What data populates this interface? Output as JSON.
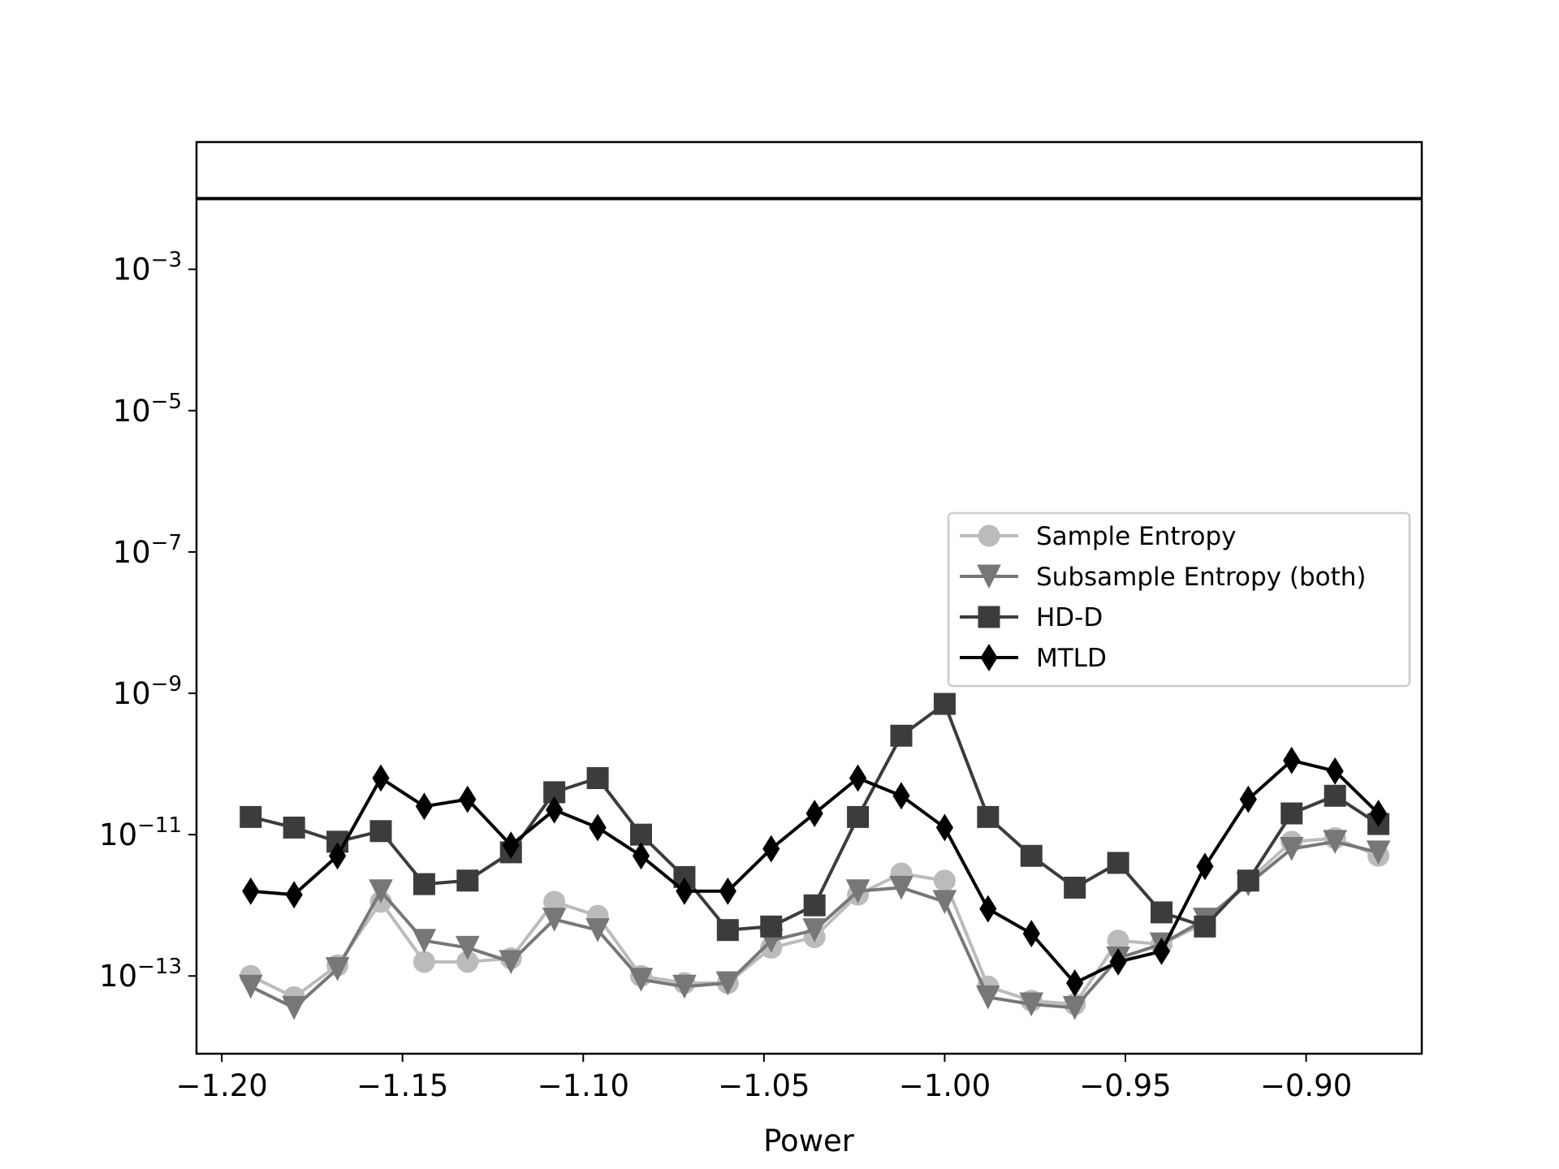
{
  "chart_data": {
    "type": "line",
    "title": "",
    "xlabel": "Power",
    "ylabel": "",
    "yscale": "log",
    "xlim": [
      -1.207,
      -0.868
    ],
    "ylim_log10": [
      -14.1,
      -1.2
    ],
    "x_ticks": [
      {
        "value": -1.2,
        "label": "−1.20"
      },
      {
        "value": -1.15,
        "label": "−1.15"
      },
      {
        "value": -1.1,
        "label": "−1.10"
      },
      {
        "value": -1.05,
        "label": "−1.05"
      },
      {
        "value": -1.0,
        "label": "−1.00"
      },
      {
        "value": -0.95,
        "label": "−0.95"
      },
      {
        "value": -0.9,
        "label": "−0.90"
      }
    ],
    "y_ticks": [
      {
        "exp": -3,
        "base": "10",
        "sup": "−3"
      },
      {
        "exp": -5,
        "base": "10",
        "sup": "−5"
      },
      {
        "exp": -7,
        "base": "10",
        "sup": "−7"
      },
      {
        "exp": -9,
        "base": "10",
        "sup": "−9"
      },
      {
        "exp": -11,
        "base": "10",
        "sup": "−11"
      },
      {
        "exp": -13,
        "base": "10",
        "sup": "−13"
      }
    ],
    "hline": {
      "log10": -2.0,
      "color": "#000000"
    },
    "legend_position": "center-right",
    "x": [
      -1.192,
      -1.18,
      -1.168,
      -1.156,
      -1.144,
      -1.132,
      -1.12,
      -1.108,
      -1.096,
      -1.084,
      -1.072,
      -1.06,
      -1.048,
      -1.036,
      -1.024,
      -1.012,
      -1.0,
      -0.988,
      -0.976,
      -0.964,
      -0.952,
      -0.94,
      -0.928,
      -0.916,
      -0.904,
      -0.892,
      -0.88
    ],
    "series": [
      {
        "name": "Sample Entropy",
        "color": "#bbbbbb",
        "marker": "circle",
        "log10": [
          -13.0,
          -13.3,
          -12.85,
          -11.95,
          -12.8,
          -12.8,
          -12.75,
          -11.95,
          -12.15,
          -13.0,
          -13.1,
          -13.1,
          -12.6,
          -12.45,
          -11.85,
          -11.55,
          -11.65,
          -13.15,
          -13.35,
          -13.4,
          -12.5,
          -12.55,
          -12.25,
          -11.65,
          -11.1,
          -11.05,
          -11.3
        ]
      },
      {
        "name": "Subsample Entropy (both)",
        "color": "#777777",
        "marker": "triangle-down",
        "log10": [
          -13.15,
          -13.45,
          -12.9,
          -11.8,
          -12.5,
          -12.6,
          -12.8,
          -12.2,
          -12.35,
          -13.05,
          -13.15,
          -13.1,
          -12.5,
          -12.35,
          -11.8,
          -11.75,
          -11.95,
          -13.3,
          -13.4,
          -13.45,
          -12.75,
          -12.55,
          -12.2,
          -11.7,
          -11.2,
          -11.1,
          -11.25
        ]
      },
      {
        "name": "HD-D",
        "color": "#3c3c3c",
        "marker": "square",
        "log10": [
          -10.75,
          -10.9,
          -11.1,
          -10.95,
          -11.7,
          -11.65,
          -11.25,
          -10.4,
          -10.2,
          -11.0,
          -11.6,
          -12.35,
          -12.3,
          -12.0,
          -10.75,
          -9.6,
          -9.15,
          -10.75,
          -11.3,
          -11.75,
          -11.4,
          -12.1,
          -12.3,
          -11.65,
          -10.7,
          -10.45,
          -10.85
        ]
      },
      {
        "name": "MTLD",
        "color": "#000000",
        "marker": "diamond",
        "log10": [
          -11.8,
          -11.85,
          -11.3,
          -10.2,
          -10.6,
          -10.5,
          -11.15,
          -10.65,
          -10.9,
          -11.3,
          -11.8,
          -11.8,
          -11.2,
          -10.7,
          -10.2,
          -10.45,
          -10.9,
          -12.05,
          -12.4,
          -13.1,
          -12.8,
          -12.65,
          -11.45,
          -10.5,
          -9.95,
          -10.1,
          -10.7
        ]
      }
    ]
  }
}
